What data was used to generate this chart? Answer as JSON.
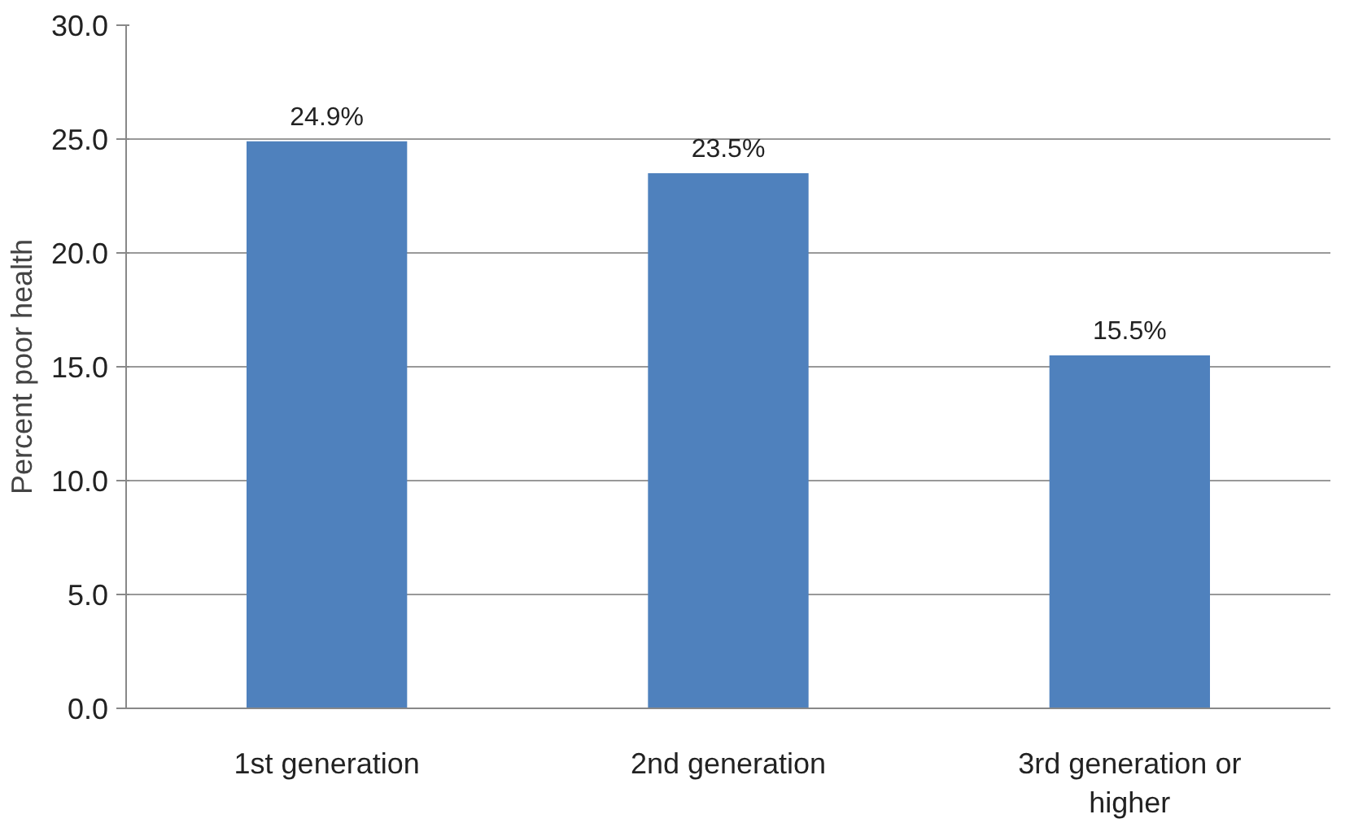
{
  "chart_data": {
    "type": "bar",
    "ylabel": "Percent poor health",
    "categories": [
      "1st generation",
      "2nd generation",
      "3rd generation or higher"
    ],
    "values": [
      24.9,
      23.5,
      15.5
    ],
    "value_labels": [
      "24.9%",
      "23.5%",
      "15.5%"
    ],
    "color": "#4f81bd",
    "ylim": [
      0,
      30
    ],
    "yticks": [
      {
        "value": 0,
        "label": "0.0"
      },
      {
        "value": 5,
        "label": "5.0"
      },
      {
        "value": 10,
        "label": "10.0"
      },
      {
        "value": 15,
        "label": "15.0"
      },
      {
        "value": 20,
        "label": "20.0"
      },
      {
        "value": 25,
        "label": "25.0"
      },
      {
        "value": 30,
        "label": "30.0"
      }
    ],
    "grid": "y"
  }
}
